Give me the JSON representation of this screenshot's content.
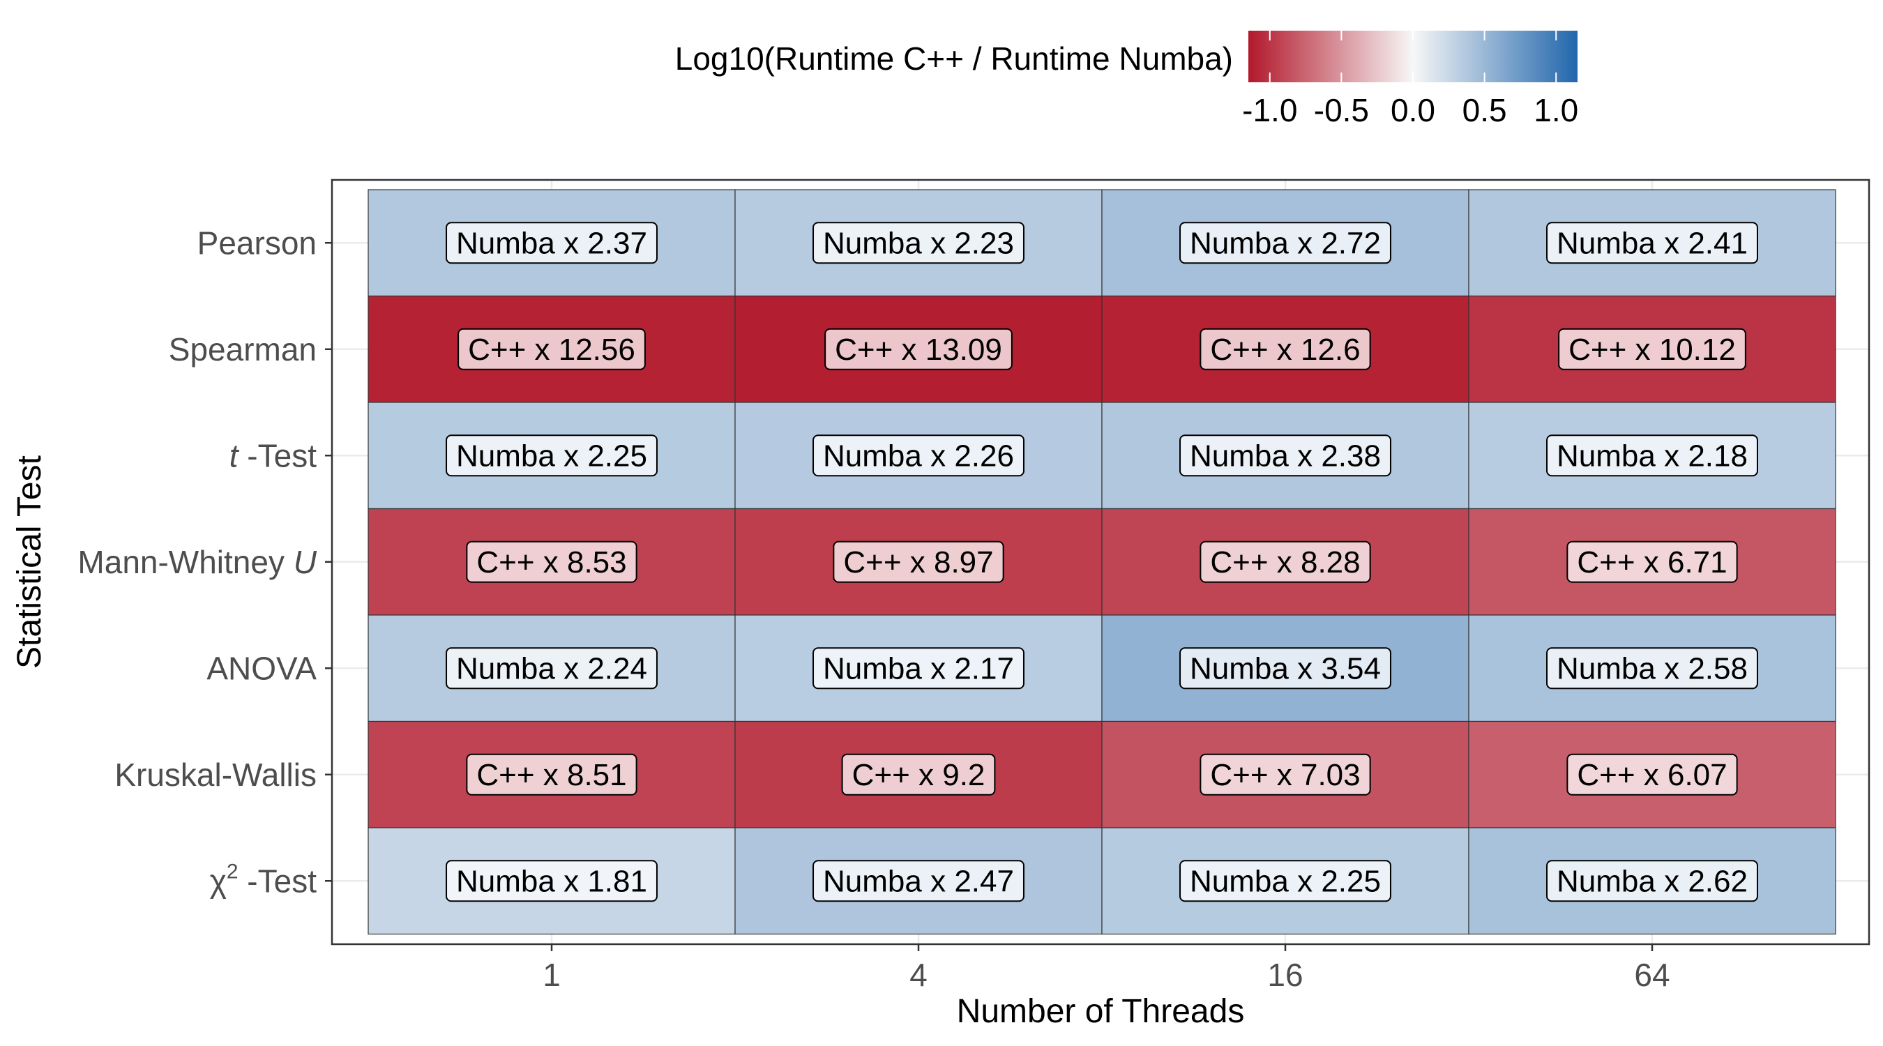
{
  "chart_data": {
    "type": "heatmap",
    "title": "",
    "xlabel": "Number of Threads",
    "ylabel": "Statistical Test",
    "x_categories": [
      "1",
      "4",
      "16",
      "64"
    ],
    "y_categories": [
      {
        "prefix": "",
        "italic": "",
        "rest": "Pearson"
      },
      {
        "prefix": "",
        "italic": "",
        "rest": "Spearman"
      },
      {
        "prefix": "",
        "italic": "t",
        "rest": " -Test"
      },
      {
        "prefix": "Mann-Whitney ",
        "italic": "U",
        "rest": ""
      },
      {
        "prefix": "",
        "italic": "",
        "rest": "ANOVA"
      },
      {
        "prefix": "",
        "italic": "",
        "rest": "Kruskal-Wallis"
      },
      {
        "prefix": "χ",
        "superscript": "2",
        "italic": "",
        "rest": " -Test"
      }
    ],
    "labels": [
      [
        "Numba x 2.37",
        "Numba x 2.23",
        "Numba x 2.72",
        "Numba x 2.41"
      ],
      [
        "C++ x 12.56",
        "C++ x 13.09",
        "C++ x 12.6",
        "C++ x 10.12"
      ],
      [
        "Numba x 2.25",
        "Numba x 2.26",
        "Numba x 2.38",
        "Numba x 2.18"
      ],
      [
        "C++ x 8.53",
        "C++ x 8.97",
        "C++ x 8.28",
        "C++ x 6.71"
      ],
      [
        "Numba x 2.24",
        "Numba x 2.17",
        "Numba x 3.54",
        "Numba x 2.58"
      ],
      [
        "C++ x 8.51",
        "C++ x 9.2",
        "C++ x 7.03",
        "C++ x 6.07"
      ],
      [
        "Numba x 1.81",
        "Numba x 2.47",
        "Numba x 2.25",
        "Numba x 2.62"
      ]
    ],
    "values": [
      [
        0.375,
        0.348,
        0.435,
        0.382
      ],
      [
        -1.099,
        -1.117,
        -1.1,
        -1.005
      ],
      [
        0.352,
        0.354,
        0.377,
        0.338
      ],
      [
        -0.931,
        -0.953,
        -0.918,
        -0.827
      ],
      [
        0.35,
        0.336,
        0.549,
        0.412
      ],
      [
        -0.93,
        -0.964,
        -0.847,
        -0.783
      ],
      [
        0.258,
        0.393,
        0.352,
        0.418
      ]
    ],
    "legend": {
      "title": "Log10(Runtime C++ / Runtime Numba)",
      "ticks": [
        "-1.0",
        "-0.5",
        "0.0",
        "0.5",
        "1.0"
      ],
      "tick_values": [
        -1.0,
        -0.5,
        0.0,
        0.5,
        1.0
      ],
      "range": [
        -1.15,
        1.15
      ],
      "colors": {
        "low": "#b2182b",
        "mid": "#f7f7f7",
        "high": "#2166ac"
      },
      "placement": "top"
    },
    "grid": true
  }
}
